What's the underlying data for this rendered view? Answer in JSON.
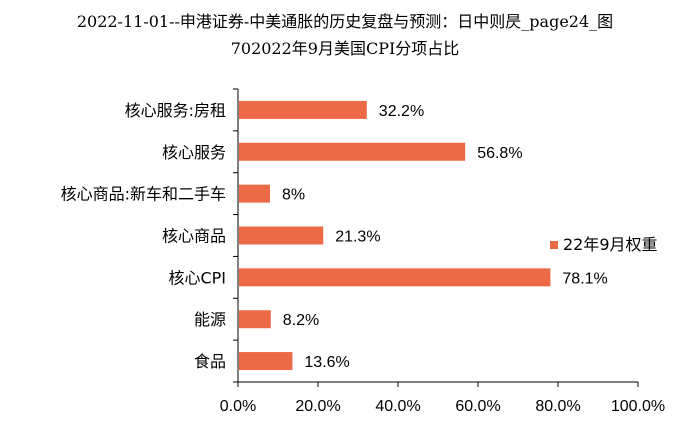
{
  "title": {
    "line1": "2022-11-01--申港证券-中美通胀的历史复盘与预测：日中则昃_page24_图",
    "line2": "702022年9月美国CPI分项占比"
  },
  "chart_data": {
    "type": "bar",
    "orientation": "horizontal",
    "categories": [
      "核心服务:房租",
      "核心服务",
      "核心商品:新车和二手车",
      "核心商品",
      "核心CPI",
      "能源",
      "食品"
    ],
    "series": [
      {
        "name": "22年9月权重",
        "values": [
          32.2,
          56.8,
          8.0,
          21.3,
          78.1,
          8.2,
          13.6
        ],
        "color": "#ED6A46"
      }
    ],
    "data_labels": [
      "32.2%",
      "56.8%",
      "8%",
      "21.3%",
      "78.1%",
      "8.2%",
      "13.6%"
    ],
    "xlim": [
      0,
      100
    ],
    "xticks": [
      "0.0%",
      "20.0%",
      "40.0%",
      "60.0%",
      "80.0%",
      "100.0%"
    ],
    "legend_position": "right",
    "grid": false
  }
}
